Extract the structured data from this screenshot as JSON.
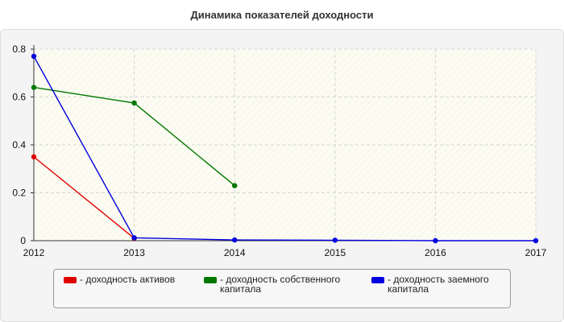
{
  "chart_data": {
    "type": "line",
    "title": "Динамика показателей доходности",
    "x": [
      "2012",
      "2013",
      "2014",
      "2015",
      "2016",
      "2017"
    ],
    "yticks": [
      "0",
      "0.2",
      "0.4",
      "0.6",
      "0.8"
    ],
    "ylim": [
      0,
      0.8
    ],
    "grid": true,
    "legend_position": "bottom",
    "series": [
      {
        "name": "- доходность активов",
        "color": "#e00000",
        "values": [
          0.35,
          0.01,
          null,
          null,
          null,
          null
        ]
      },
      {
        "name": "- доходность собственного капитала",
        "color": "#007800",
        "values": [
          0.64,
          0.575,
          0.23,
          null,
          null,
          null
        ]
      },
      {
        "name": "- доходность заемного капитала",
        "color": "#0000e0",
        "values": [
          0.77,
          0.012,
          0.003,
          0.002,
          0.0,
          0.0
        ]
      }
    ]
  }
}
